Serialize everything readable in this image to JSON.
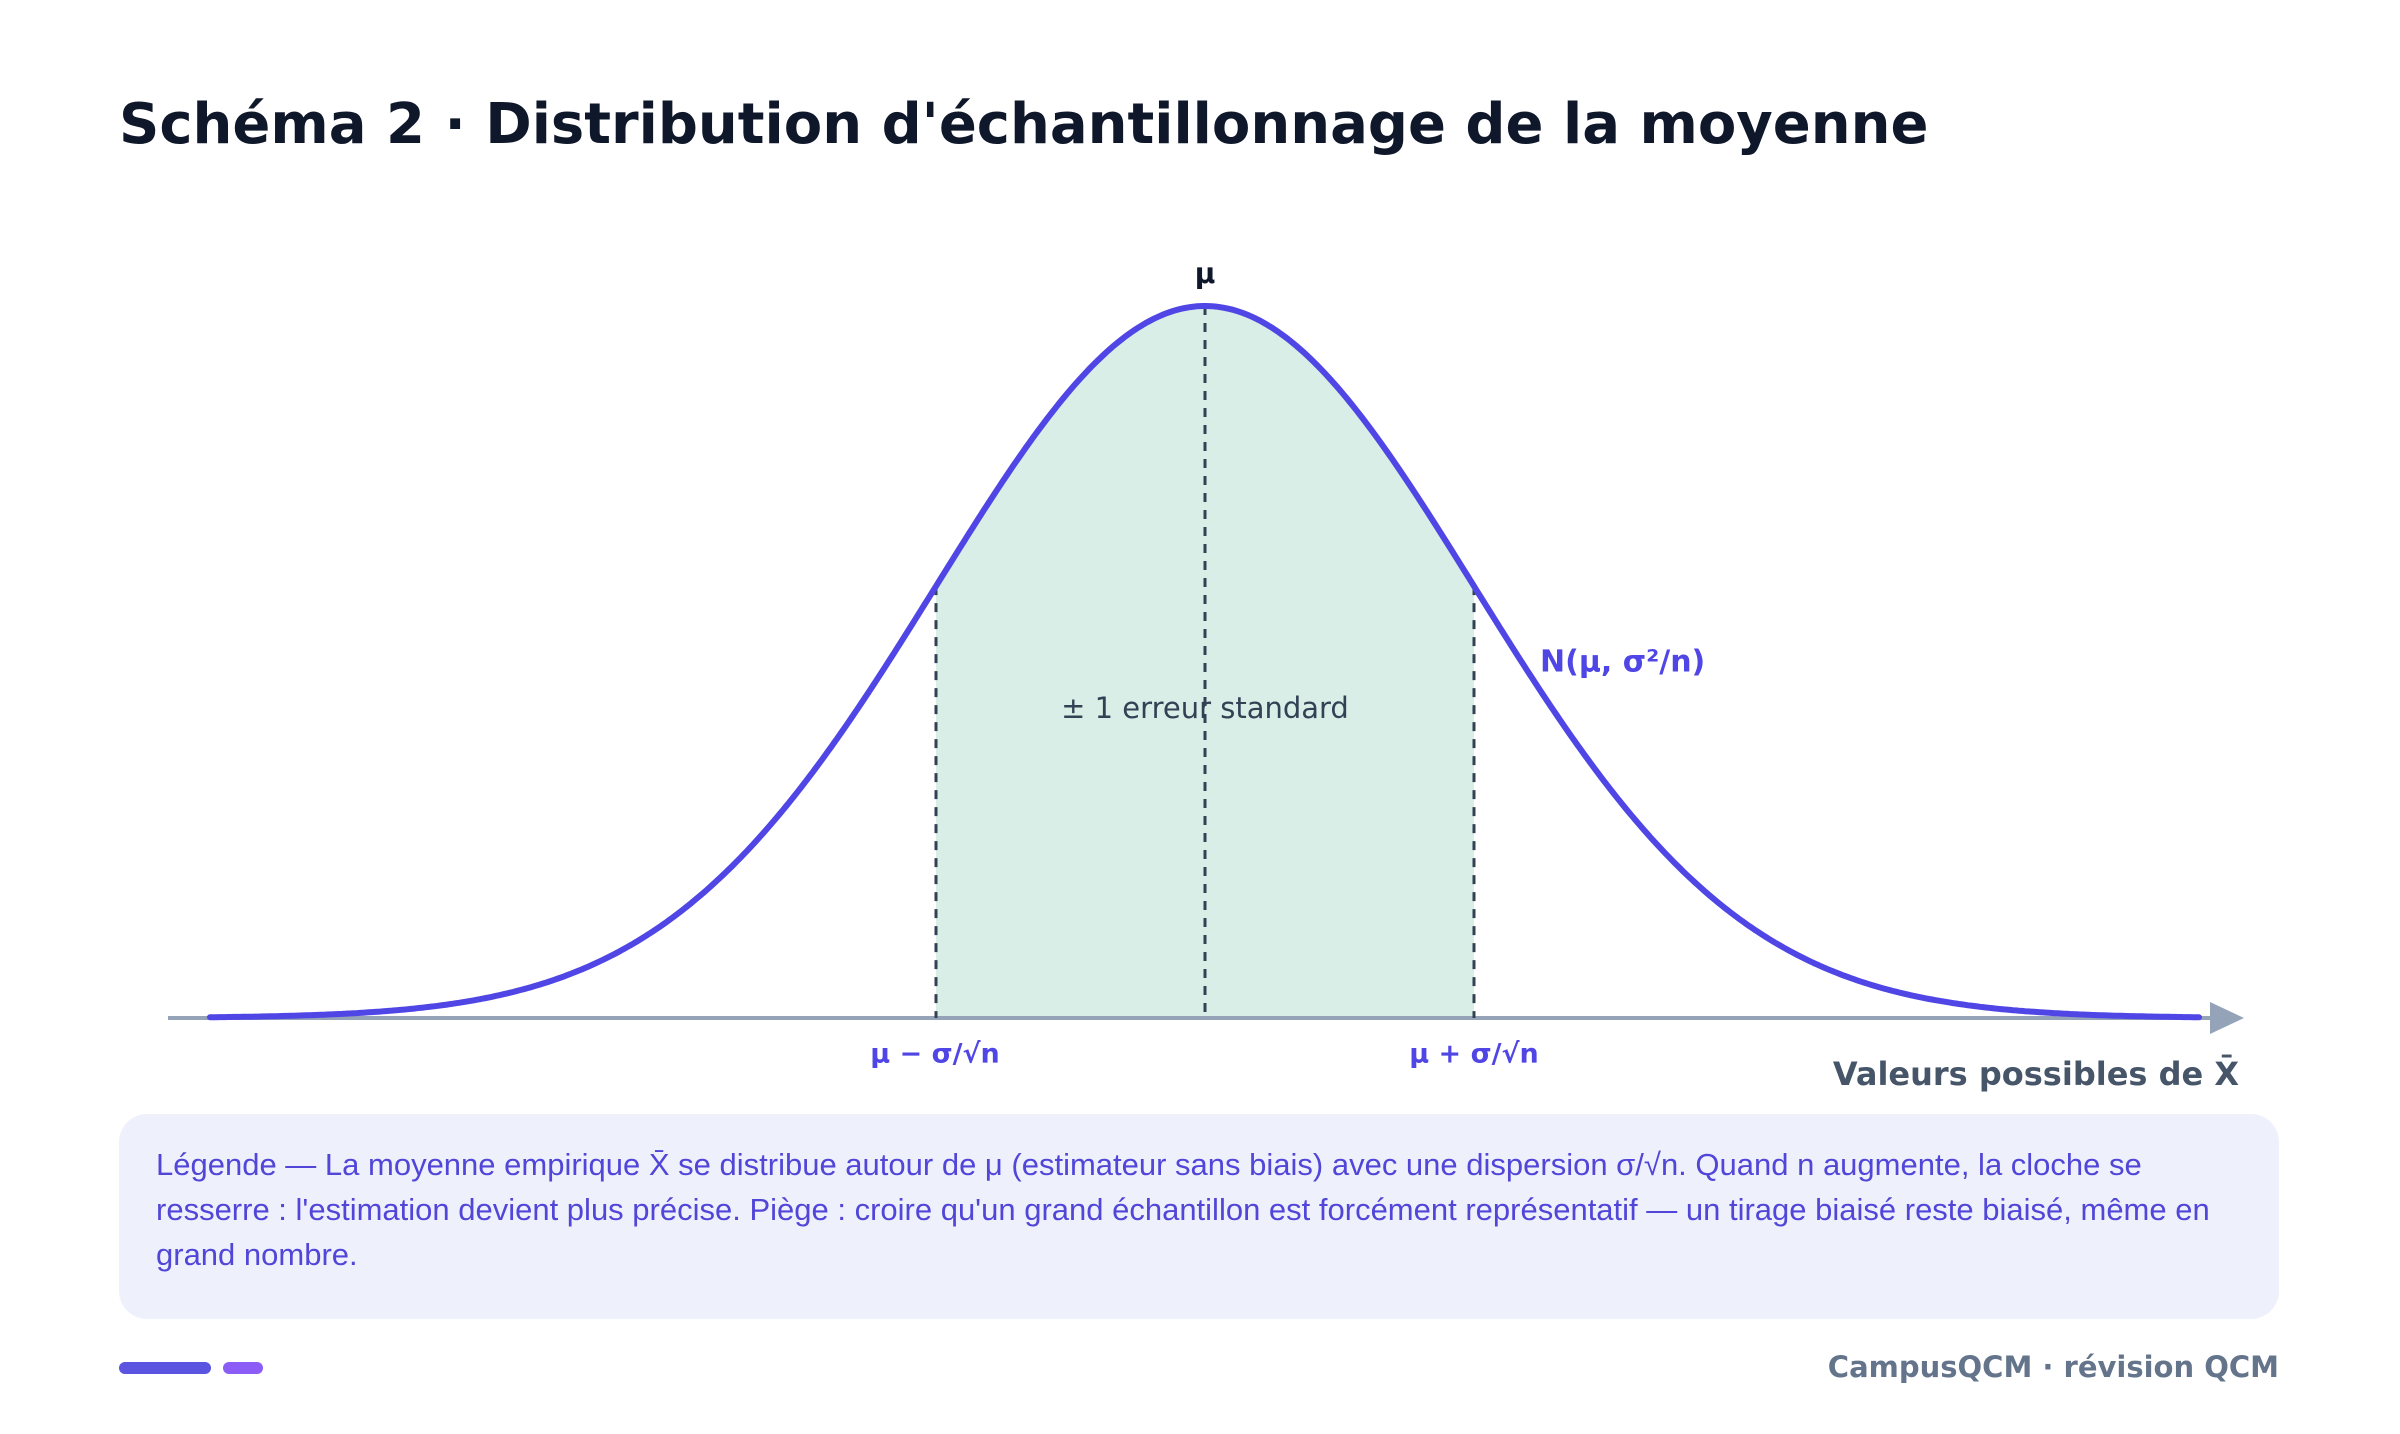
{
  "header": {
    "title": "Schéma 2 · Distribution d'échantillonnage de la moyenne"
  },
  "diagram": {
    "mean_label": "μ",
    "lower_label": "μ − σ/√n",
    "upper_label": "μ + σ/√n",
    "band_label": "± 1 erreur standard",
    "curve_label": "N(μ, σ²/n)",
    "axis_label": "Valeurs possibles de X̄"
  },
  "legend": {
    "text": "Légende — La moyenne empirique X̄ se distribue autour de μ (estimateur sans biais) avec une dispersion σ/√n. Quand n augmente, la cloche se resserre : l'estimation devient plus précise. Piège : croire qu'un grand échantillon est forcément représentatif — un tirage biaisé reste biaisé, même en grand nombre."
  },
  "footer": {
    "text": "CampusQCM · révision QCM"
  }
}
